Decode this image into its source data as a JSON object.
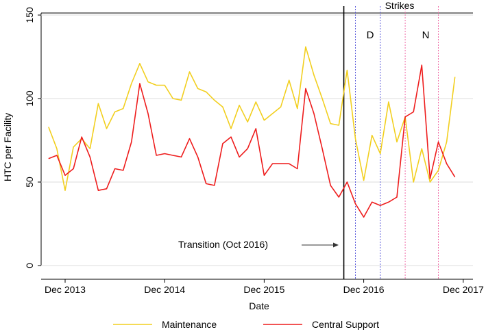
{
  "chart_data": {
    "type": "line",
    "xlabel": "Date",
    "ylabel": "HTC per Facility",
    "x_ticks": [
      {
        "label": "Dec 2013",
        "index": 2
      },
      {
        "label": "Dec 2014",
        "index": 14
      },
      {
        "label": "Dec 2015",
        "index": 26
      },
      {
        "label": "Dec 2016",
        "index": 38
      },
      {
        "label": "Dec 2017",
        "index": 50
      }
    ],
    "y_ticks": [
      0,
      50,
      100,
      150
    ],
    "ylim": [
      0,
      150
    ],
    "x_range_index": [
      0,
      50
    ],
    "grid": "horizontal",
    "series": [
      {
        "name": "Maintenance",
        "color": "#f2cf1f",
        "values": [
          83,
          70,
          45,
          71,
          76,
          70,
          97,
          82,
          92,
          94,
          109,
          121,
          110,
          108,
          108,
          100,
          99,
          116,
          106,
          104,
          99,
          95,
          82,
          96,
          86,
          98,
          87,
          91,
          95,
          111,
          94,
          131,
          114,
          100,
          85,
          84,
          117,
          76,
          51,
          78,
          67,
          98,
          74,
          89,
          50,
          70,
          50,
          57,
          74,
          113
        ]
      },
      {
        "name": "Central Support",
        "color": "#ee1c1c",
        "values": [
          64,
          66,
          54,
          58,
          77,
          65,
          45,
          46,
          58,
          57,
          74,
          109,
          91,
          66,
          67,
          66,
          65,
          76,
          65,
          49,
          48,
          73,
          77,
          65,
          70,
          82,
          54,
          61,
          61,
          61,
          58,
          106,
          91,
          70,
          48,
          41,
          50,
          37,
          29,
          38,
          36,
          38,
          41,
          89,
          92,
          120,
          52,
          74,
          61,
          53
        ]
      }
    ],
    "vertical_lines": [
      {
        "index": 35.6,
        "style": "solid",
        "color": "#000000"
      },
      {
        "index": 37,
        "style": "dotted",
        "color": "#5b5bdb"
      },
      {
        "index": 40,
        "style": "dotted",
        "color": "#5b5bdb"
      },
      {
        "index": 43,
        "style": "dotted",
        "color": "#f06ea8"
      },
      {
        "index": 47,
        "style": "dotted",
        "color": "#f06ea8"
      }
    ],
    "annotations": {
      "strikes": "Strikes",
      "d_label": "D",
      "d_color": "#3a3ae6",
      "n_label": "N",
      "n_color": "#e6127c",
      "transition": "Transition (Oct 2016)"
    },
    "legend_placement": "bottom"
  }
}
